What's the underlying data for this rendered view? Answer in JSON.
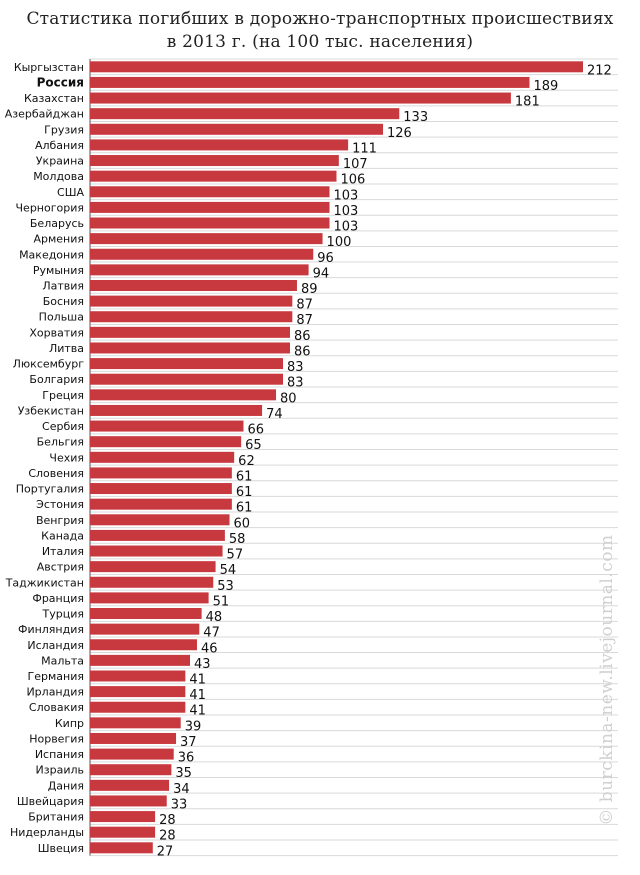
{
  "chart_data": {
    "type": "bar",
    "orientation": "horizontal",
    "title": "Статистика погибших в дорожно-транспортных происшествиях",
    "subtitle": "в 2013 г. (на 100 тыс. населения)",
    "watermark": "© burckina-new.livejournal.com",
    "bar_color": "#c8393f",
    "highlight_category": "Россия",
    "grid": true,
    "legend": "none",
    "xlim": [
      0,
      212
    ],
    "categories": [
      "Кыргызстан",
      "Россия",
      "Казахстан",
      "Азербайджан",
      "Грузия",
      "Албания",
      "Украина",
      "Молдова",
      "США",
      "Черногория",
      "Беларусь",
      "Армения",
      "Македония",
      "Румыния",
      "Латвия",
      "Босния",
      "Польша",
      "Хорватия",
      "Литва",
      "Люксембург",
      "Болгария",
      "Греция",
      "Узбекистан",
      "Сербия",
      "Бельгия",
      "Чехия",
      "Словения",
      "Португалия",
      "Эстония",
      "Венгрия",
      "Канада",
      "Италия",
      "Австрия",
      "Таджикистан",
      "Франция",
      "Турция",
      "Финляндия",
      "Исландия",
      "Мальта",
      "Германия",
      "Ирландия",
      "Словакия",
      "Кипр",
      "Норвегия",
      "Испания",
      "Израиль",
      "Дания",
      "Швейцария",
      "Британия",
      "Нидерланды",
      "Швеция"
    ],
    "values": [
      212,
      189,
      181,
      133,
      126,
      111,
      107,
      106,
      103,
      103,
      103,
      100,
      96,
      94,
      89,
      87,
      87,
      86,
      86,
      83,
      83,
      80,
      74,
      66,
      65,
      62,
      61,
      61,
      61,
      60,
      58,
      57,
      54,
      53,
      51,
      48,
      47,
      46,
      43,
      41,
      41,
      41,
      39,
      37,
      36,
      35,
      34,
      33,
      28,
      28,
      27
    ]
  }
}
